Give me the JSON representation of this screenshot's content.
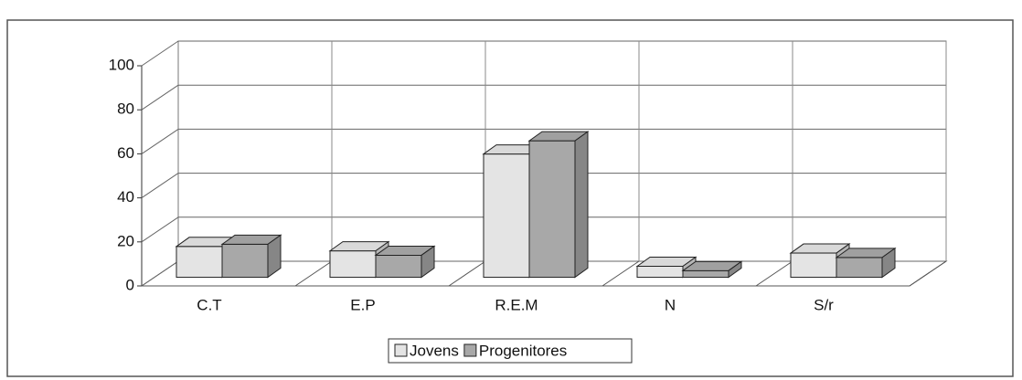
{
  "chart_data": {
    "type": "bar3d",
    "categories": [
      "C.T",
      "E.P",
      "R.E.M",
      "N",
      "S/r"
    ],
    "series": [
      {
        "name": "Jovens",
        "color": "#e4e4e4",
        "values": [
          14,
          12,
          56,
          5,
          11
        ]
      },
      {
        "name": "Progenitores",
        "color": "#a8a8a8",
        "values": [
          15,
          10,
          62,
          3,
          9
        ]
      }
    ],
    "ylim": [
      0,
      100
    ],
    "yticks": [
      0,
      20,
      40,
      60,
      80,
      100
    ],
    "grid": true,
    "legend": "bottom"
  }
}
